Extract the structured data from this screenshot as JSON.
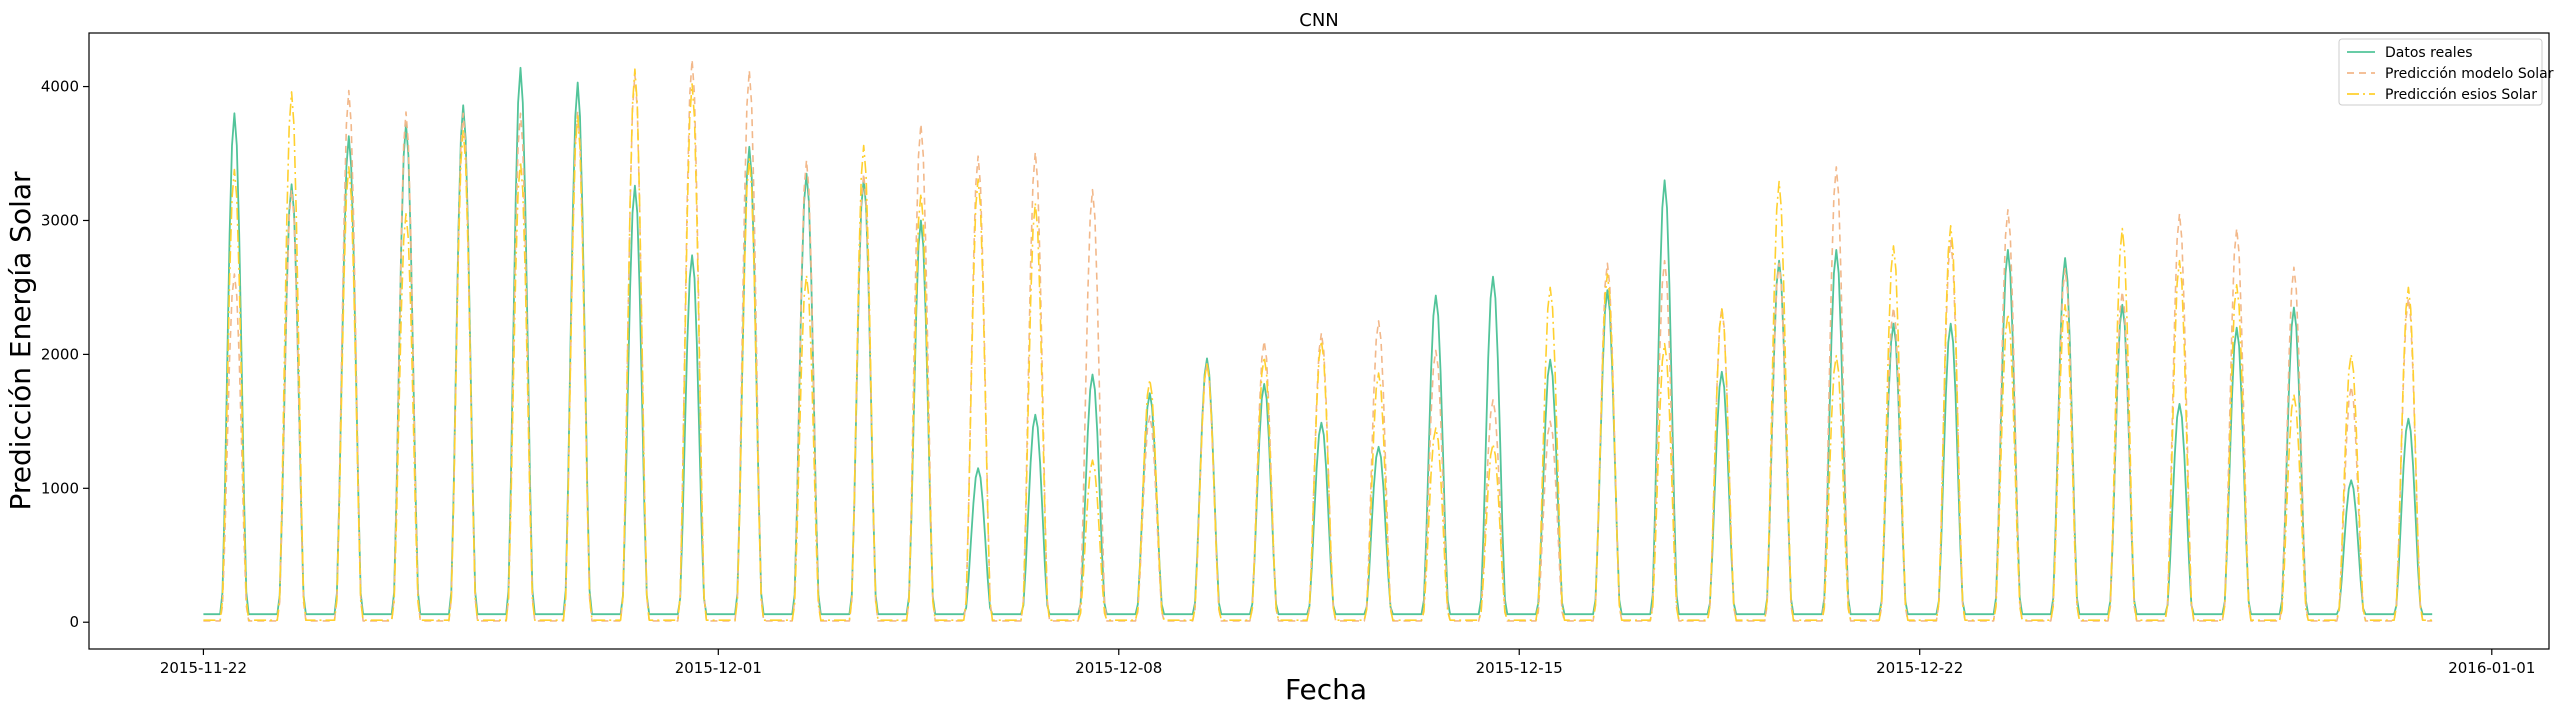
{
  "chart_data": {
    "type": "line",
    "title": "CNN",
    "xlabel": "Fecha",
    "ylabel": "Predicción Energía Solar",
    "xlim": [
      "2015-11-20",
      "2016-01-02"
    ],
    "ylim": [
      -200,
      4400
    ],
    "x_ticks": [
      "2015-11-22",
      "2015-12-01",
      "2015-12-08",
      "2015-12-15",
      "2015-12-22",
      "2016-01-01"
    ],
    "y_ticks": [
      0,
      1000,
      2000,
      3000,
      4000
    ],
    "grid": false,
    "legend_position": "top-right",
    "x_start": "2015-11-22",
    "series": [
      {
        "name": "Datos reales",
        "color": "#52c49a",
        "dash": "solid",
        "night": 60,
        "daily_peaks": [
          3800,
          3270,
          3630,
          3720,
          3860,
          4140,
          4030,
          3260,
          2740,
          3550,
          3350,
          3310,
          3000,
          1150,
          1550,
          1850,
          1710,
          1970,
          1780,
          1490,
          1310,
          2440,
          2580,
          1960,
          2480,
          3300,
          1870,
          2700,
          2780,
          2230,
          2230,
          2780,
          2720,
          2370,
          1630,
          2200,
          2350,
          1060,
          1520
        ]
      },
      {
        "name": "Predicción modelo Solar",
        "color": "#f2b88a",
        "dash": "7,5",
        "night": 10,
        "daily_peaks": [
          2600,
          3230,
          3970,
          3810,
          3800,
          3800,
          3820,
          4090,
          4200,
          4120,
          3450,
          3350,
          3720,
          3480,
          3510,
          3230,
          1540,
          1930,
          2100,
          2160,
          2250,
          2030,
          1660,
          1500,
          2680,
          2700,
          2350,
          2680,
          3400,
          2350,
          2850,
          3080,
          2640,
          2470,
          3050,
          2940,
          2650,
          1760,
          2420
        ]
      },
      {
        "name": "Predicción esios Solar",
        "color": "#ffd02e",
        "dash": "12,4,2,4",
        "night": 15,
        "daily_peaks": [
          3380,
          3960,
          3400,
          3050,
          3670,
          3440,
          3780,
          4130,
          4020,
          3460,
          2590,
          3560,
          3200,
          3310,
          3130,
          1210,
          1810,
          1940,
          1980,
          2100,
          1860,
          1450,
          1330,
          2500,
          2600,
          2080,
          2340,
          3290,
          1990,
          2810,
          2960,
          2300,
          2370,
          2940,
          2700,
          2520,
          1700,
          2000,
          2500
        ]
      }
    ]
  }
}
